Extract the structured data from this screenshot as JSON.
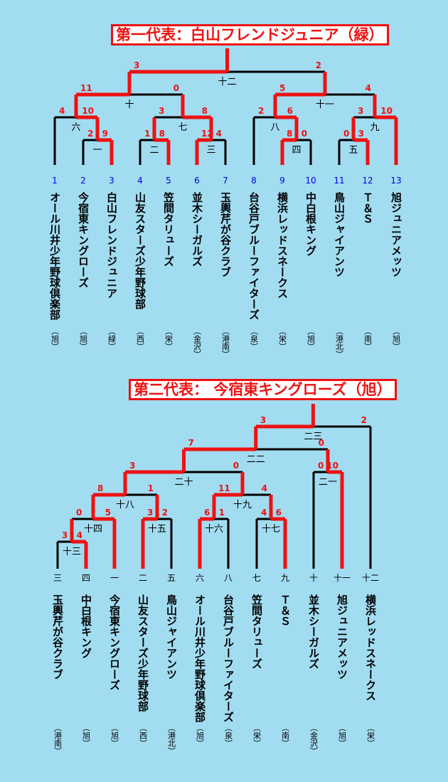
{
  "colors": {
    "background": "#a2dcf1",
    "win": "#ee1111",
    "lose": "#000000",
    "seed": "#0000dd",
    "score": "#ee1111"
  },
  "b1": {
    "title": "第一代表：白山フレンドジュニア（緑）",
    "teams": [
      {
        "seed": "1",
        "name": "オール川井少年野球倶楽部",
        "ward": "（旭）"
      },
      {
        "seed": "2",
        "name": "今宿東キングローズ",
        "ward": "（旭）"
      },
      {
        "seed": "3",
        "name": "白山フレンドジュニア",
        "ward": "（緑）"
      },
      {
        "seed": "4",
        "name": "山友スターズ少年野球部",
        "ward": "（西）"
      },
      {
        "seed": "5",
        "name": "笠間タリューズ",
        "ward": "（栄）"
      },
      {
        "seed": "6",
        "name": "並木シーガルズ",
        "ward": "（金沢）"
      },
      {
        "seed": "7",
        "name": "玉輿芹が谷クラブ",
        "ward": "（港南）"
      },
      {
        "seed": "8",
        "name": "台谷戸ブルーファイターズ",
        "ward": "（泉）"
      },
      {
        "seed": "9",
        "name": "横浜レッドスネークス",
        "ward": "（栄）"
      },
      {
        "seed": "10",
        "name": "中白根キング",
        "ward": "（旭）"
      },
      {
        "seed": "11",
        "name": "鳥山ジャイアンツ",
        "ward": "（港北）"
      },
      {
        "seed": "12",
        "name": "Ｔ＆Ｓ",
        "ward": "（南）"
      },
      {
        "seed": "13",
        "name": "旭ジュニアメッツ",
        "ward": "（旭）"
      }
    ],
    "games": [
      {
        "id": "一",
        "a": "2",
        "b": "9"
      },
      {
        "id": "二",
        "a": "1",
        "b": "8"
      },
      {
        "id": "三",
        "a": "12",
        "b": "4"
      },
      {
        "id": "四",
        "a": "8",
        "b": "0"
      },
      {
        "id": "五",
        "a": "0",
        "b": "3"
      },
      {
        "id": "六",
        "a": "4",
        "b": "10"
      },
      {
        "id": "七",
        "a": "3",
        "b": "8"
      },
      {
        "id": "八",
        "a": "2",
        "b": "6"
      },
      {
        "id": "九",
        "a": "3",
        "b": "10"
      },
      {
        "id": "十",
        "a": "11",
        "b": "0"
      },
      {
        "id": "十一",
        "a": "5",
        "b": "4"
      },
      {
        "id": "十二",
        "a": "3",
        "b": "2"
      }
    ]
  },
  "b2": {
    "title": "第二代表： 今宿東キングローズ（旭）",
    "teams": [
      {
        "seed": "三",
        "name": "玉輿芹が谷クラブ",
        "ward": "（港南）"
      },
      {
        "seed": "四",
        "name": "中白根キング",
        "ward": "（旭）"
      },
      {
        "seed": "一",
        "name": "今宿東キングローズ",
        "ward": "（旭）"
      },
      {
        "seed": "二",
        "name": "山友スターズ少年野球部",
        "ward": "（西）"
      },
      {
        "seed": "五",
        "name": "鳥山ジャイアンツ",
        "ward": "（港北）"
      },
      {
        "seed": "六",
        "name": "オール川井少年野球倶楽部",
        "ward": "（旭）"
      },
      {
        "seed": "八",
        "name": "台谷戸ブルーファイターズ",
        "ward": "（泉）"
      },
      {
        "seed": "七",
        "name": "笠間タリューズ",
        "ward": "（栄）"
      },
      {
        "seed": "九",
        "name": "Ｔ＆Ｓ",
        "ward": "（南）"
      },
      {
        "seed": "十",
        "name": "並木シーガルズ",
        "ward": "（金沢）"
      },
      {
        "seed": "十一",
        "name": "旭ジュニアメッツ",
        "ward": "（旭）"
      },
      {
        "seed": "十二",
        "name": "横浜レッドスネークス",
        "ward": "（栄）"
      }
    ],
    "games": [
      {
        "id": "十三",
        "a": "3",
        "b": "4"
      },
      {
        "id": "十四",
        "a": "0",
        "b": "5"
      },
      {
        "id": "十五",
        "a": "3",
        "b": "2"
      },
      {
        "id": "十六",
        "a": "6",
        "b": "1"
      },
      {
        "id": "十七",
        "a": "4",
        "b": "6"
      },
      {
        "id": "十八",
        "a": "8",
        "b": "1"
      },
      {
        "id": "十九",
        "a": "11",
        "b": "4"
      },
      {
        "id": "二十",
        "a": "3",
        "b": "0"
      },
      {
        "id": "二一",
        "a": "0",
        "b": "10"
      },
      {
        "id": "二二",
        "a": "7",
        "b": "0"
      },
      {
        "id": "二三",
        "a": "3",
        "b": "2"
      }
    ]
  }
}
